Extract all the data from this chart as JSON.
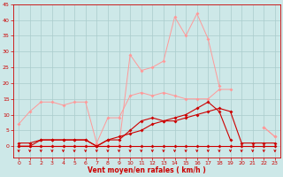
{
  "x": [
    0,
    1,
    2,
    3,
    4,
    5,
    6,
    7,
    8,
    9,
    10,
    11,
    12,
    13,
    14,
    15,
    16,
    17,
    18,
    19,
    20,
    21,
    22,
    23
  ],
  "line_light1": [
    7,
    11,
    14,
    14,
    13,
    14,
    14,
    1,
    9,
    9,
    16,
    17,
    16,
    17,
    16,
    15,
    15,
    15,
    18,
    18,
    null,
    null,
    6,
    3
  ],
  "line_light2": [
    0,
    0,
    0,
    0,
    0,
    0,
    0,
    0,
    0,
    0,
    29,
    24,
    25,
    27,
    41,
    35,
    42,
    34,
    19,
    null,
    null,
    null,
    6,
    3
  ],
  "line_dark1": [
    1,
    1,
    2,
    2,
    2,
    2,
    2,
    0,
    2,
    3,
    4,
    5,
    7,
    8,
    8,
    9,
    10,
    11,
    12,
    11,
    1,
    1,
    1,
    1
  ],
  "line_dark2": [
    0,
    0,
    2,
    2,
    2,
    2,
    2,
    0,
    2,
    2,
    5,
    8,
    9,
    8,
    9,
    10,
    12,
    14,
    11,
    2,
    null,
    null,
    null,
    null
  ],
  "line_dark3": [
    0,
    0,
    0,
    0,
    0,
    0,
    0,
    0,
    0,
    0,
    0,
    0,
    0,
    0,
    0,
    0,
    0,
    0,
    0,
    0,
    0,
    0,
    0,
    0
  ],
  "arrows_x": [
    0,
    1,
    2,
    3,
    4,
    5,
    6,
    7,
    8,
    9,
    10,
    11,
    12,
    13,
    14,
    15,
    16,
    17,
    18,
    19,
    20,
    21,
    22,
    23
  ],
  "ylim": [
    0,
    45
  ],
  "xlim": [
    -0.5,
    23.5
  ],
  "yticks": [
    0,
    5,
    10,
    15,
    20,
    25,
    30,
    35,
    40,
    45
  ],
  "xticks": [
    0,
    1,
    2,
    3,
    4,
    5,
    6,
    7,
    8,
    9,
    10,
    11,
    12,
    13,
    14,
    15,
    16,
    17,
    18,
    19,
    20,
    21,
    22,
    23
  ],
  "xlabel": "Vent moyen/en rafales ( km/h )",
  "bg_color": "#cde8e8",
  "grid_color": "#aacccc",
  "line_color_dark": "#cc0000",
  "line_color_light": "#ff9999",
  "arrow_color": "#cc0000"
}
